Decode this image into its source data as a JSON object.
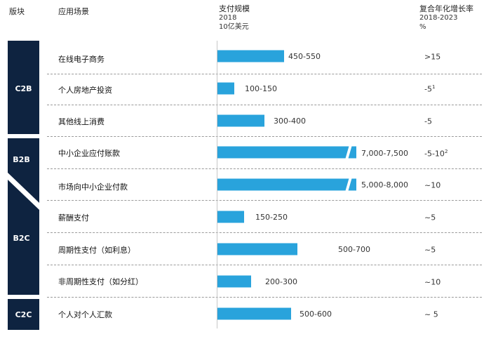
{
  "header": {
    "segment_col": "版块",
    "scenario_col": "应用场景",
    "payment_title": "支付规模",
    "payment_year": "2018",
    "payment_unit": "10亿美元",
    "cagr_title": "复合年化增长率",
    "cagr_years": "2018-2023",
    "cagr_unit": "%"
  },
  "segments": [
    {
      "label": "C2B",
      "color": "#0e2340"
    },
    {
      "label": "B2B",
      "color": "#0e2340"
    },
    {
      "label": "B2C",
      "color": "#0e2340"
    },
    {
      "label": "C2C",
      "color": "#0e2340"
    }
  ],
  "chart_data": {
    "type": "bar",
    "orientation": "horizontal",
    "bar_color": "#29a3dc",
    "unit": "10亿美元",
    "categories": [
      "在线电子商务",
      "个人房地产投资",
      "其他线上消费",
      "中小企业应付账款",
      "市场向中小企业付款",
      "薪酬支付",
      "周期性支付（如利息）",
      "非周期性支付（如分红）",
      "个人对个人汇款"
    ],
    "ranges": [
      "450-550",
      "100-150",
      "300-400",
      "7,000-7,500",
      "5,000-8,000",
      "150-250",
      "500-700",
      "200-300",
      "500-600"
    ],
    "values": [
      500,
      125,
      350,
      7250,
      6500,
      200,
      600,
      250,
      550
    ],
    "broken_axis": [
      false,
      false,
      false,
      true,
      true,
      false,
      false,
      false,
      false
    ],
    "cagr": [
      ">15",
      "-5",
      "-5",
      "-5-10",
      "~10",
      "~5",
      "~5",
      "~10",
      "~ 5"
    ],
    "cagr_footnote": [
      "",
      "1",
      "",
      "2",
      "",
      "",
      "",
      "",
      ""
    ]
  }
}
